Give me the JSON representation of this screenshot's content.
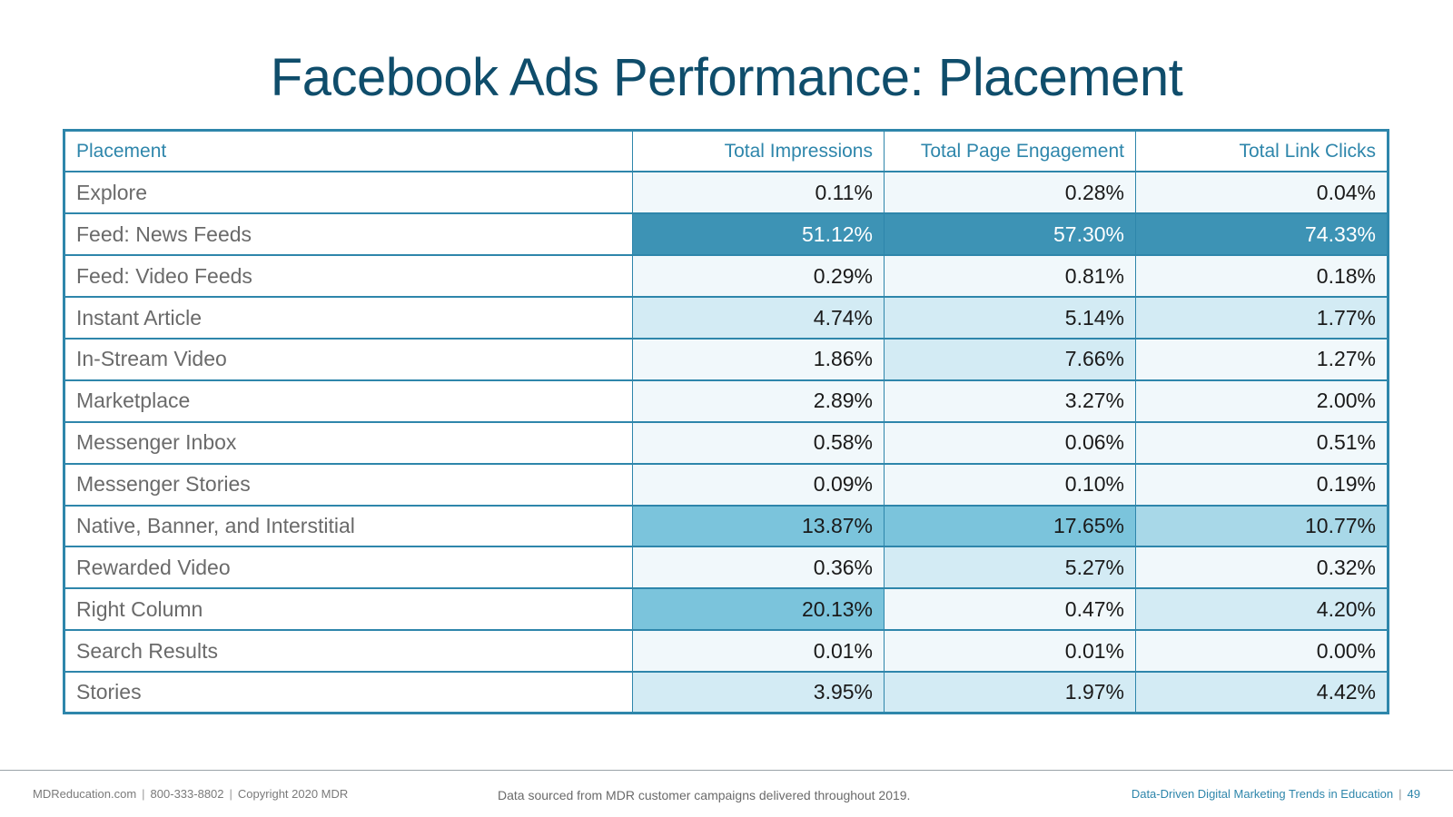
{
  "slide": {
    "title": "Facebook Ads Performance: Placement"
  },
  "colors": {
    "accent": "#2e86ab",
    "title": "#0f4d6b",
    "heat_1": "#f1f8fb",
    "heat_2": "#d3ebf4",
    "heat_3": "#a8d8e8",
    "heat_4": "#7bc4dc",
    "heat_5": "#3d93b5"
  },
  "table": {
    "headers": [
      "Placement",
      "Total Impressions",
      "Total Page Engagement",
      "Total Link Clicks"
    ],
    "rows": [
      {
        "placement": "Explore",
        "impressions": "0.11%",
        "engagement": "0.28%",
        "clicks": "0.04%",
        "heat": [
          1,
          1,
          1
        ]
      },
      {
        "placement": "Feed: News Feeds",
        "impressions": "51.12%",
        "engagement": "57.30%",
        "clicks": "74.33%",
        "heat": [
          5,
          5,
          5
        ]
      },
      {
        "placement": "Feed: Video Feeds",
        "impressions": "0.29%",
        "engagement": "0.81%",
        "clicks": "0.18%",
        "heat": [
          1,
          1,
          1
        ]
      },
      {
        "placement": "Instant Article",
        "impressions": "4.74%",
        "engagement": "5.14%",
        "clicks": "1.77%",
        "heat": [
          2,
          2,
          2
        ]
      },
      {
        "placement": "In-Stream Video",
        "impressions": "1.86%",
        "engagement": "7.66%",
        "clicks": "1.27%",
        "heat": [
          1,
          2,
          1
        ]
      },
      {
        "placement": "Marketplace",
        "impressions": "2.89%",
        "engagement": "3.27%",
        "clicks": "2.00%",
        "heat": [
          1,
          1,
          1
        ]
      },
      {
        "placement": "Messenger Inbox",
        "impressions": "0.58%",
        "engagement": "0.06%",
        "clicks": "0.51%",
        "heat": [
          1,
          1,
          1
        ]
      },
      {
        "placement": "Messenger Stories",
        "impressions": "0.09%",
        "engagement": "0.10%",
        "clicks": "0.19%",
        "heat": [
          1,
          1,
          1
        ]
      },
      {
        "placement": "Native, Banner, and Interstitial",
        "impressions": "13.87%",
        "engagement": "17.65%",
        "clicks": "10.77%",
        "heat": [
          4,
          4,
          3
        ]
      },
      {
        "placement": "Rewarded Video",
        "impressions": "0.36%",
        "engagement": "5.27%",
        "clicks": "0.32%",
        "heat": [
          1,
          2,
          1
        ]
      },
      {
        "placement": "Right Column",
        "impressions": "20.13%",
        "engagement": "0.47%",
        "clicks": "4.20%",
        "heat": [
          4,
          1,
          2
        ]
      },
      {
        "placement": "Search Results",
        "impressions": "0.01%",
        "engagement": "0.01%",
        "clicks": "0.00%",
        "heat": [
          1,
          1,
          1
        ]
      },
      {
        "placement": "Stories",
        "impressions": "3.95%",
        "engagement": "1.97%",
        "clicks": "4.42%",
        "heat": [
          2,
          2,
          2
        ]
      }
    ]
  },
  "footer": {
    "website": "MDReducation.com",
    "phone": "800-333-8802",
    "copyright": "Copyright 2020 MDR",
    "source_note": "Data sourced from MDR customer campaigns delivered throughout 2019.",
    "report_title": "Data-Driven Digital Marketing Trends in Education",
    "page_number": "49"
  }
}
